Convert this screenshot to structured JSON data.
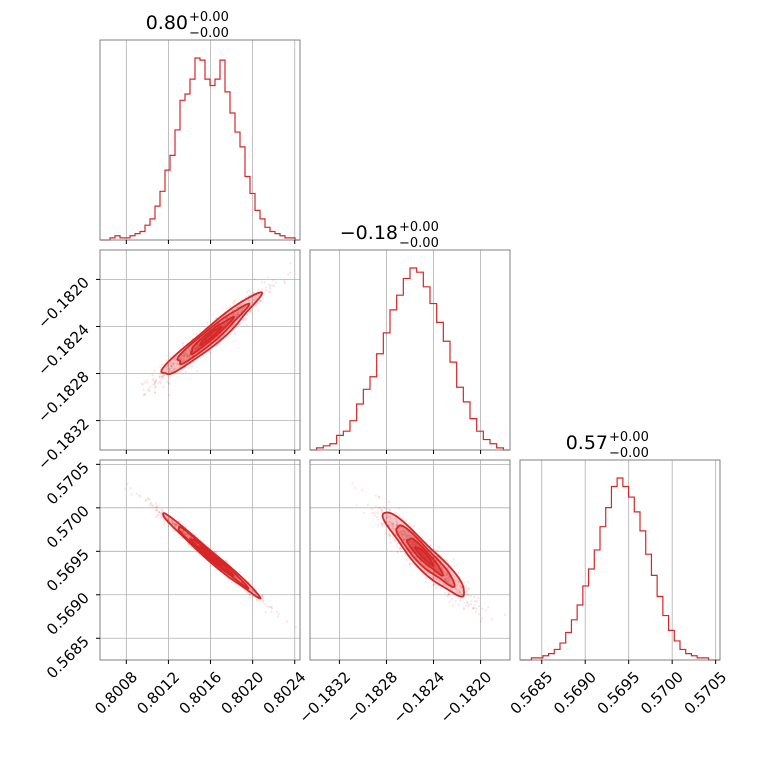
{
  "colors": {
    "series": "#d62728",
    "grid": "#b0b0b0",
    "frame": "#808080"
  },
  "titles": [
    {
      "value": "0.80",
      "plus": "+0.00",
      "minus": "−0.00"
    },
    {
      "value": "−0.18",
      "plus": "+0.00",
      "minus": "−0.00"
    },
    {
      "value": "0.57",
      "plus": "+0.00",
      "minus": "−0.00"
    }
  ],
  "chart_data": {
    "type": "corner",
    "parameters": [
      {
        "range": [
          0.80055,
          0.80245
        ],
        "ticks": [
          0.8008,
          0.8012,
          0.8016,
          0.802,
          0.8024
        ],
        "tick_labels": [
          "0.8008",
          "0.8012",
          "0.8016",
          "0.8020",
          "0.8024"
        ],
        "histogram": [
          0,
          0,
          1,
          2,
          1,
          1,
          2,
          3,
          4,
          7,
          10,
          16,
          23,
          33,
          40,
          52,
          66,
          69,
          76,
          86,
          85,
          76,
          73,
          76,
          85,
          70,
          60,
          51,
          44,
          30,
          22,
          14,
          10,
          6,
          4,
          3,
          2,
          1,
          1,
          0
        ]
      },
      {
        "range": [
          -0.18345,
          -0.18175
        ],
        "ticks": [
          -0.1832,
          -0.1828,
          -0.1824,
          -0.182
        ],
        "tick_labels": [
          "−0.1832",
          "−0.1828",
          "−0.1824",
          "−0.1820"
        ],
        "histogram": [
          0,
          1,
          2,
          3,
          7,
          9,
          14,
          22,
          29,
          35,
          46,
          56,
          67,
          74,
          82,
          87,
          85,
          78,
          70,
          61,
          52,
          42,
          30,
          23,
          15,
          9,
          5,
          3,
          1,
          0
        ]
      },
      {
        "range": [
          0.56825,
          0.57055
        ],
        "ticks": [
          0.5685,
          0.569,
          0.5695,
          0.57,
          0.5705
        ],
        "tick_labels": [
          "0.5685",
          "0.5690",
          "0.5695",
          "0.5700",
          "0.5705"
        ],
        "histogram": [
          0,
          0,
          1,
          1,
          2,
          3,
          5,
          8,
          13,
          19,
          26,
          35,
          43,
          52,
          63,
          72,
          82,
          86,
          82,
          77,
          70,
          61,
          50,
          40,
          30,
          21,
          14,
          9,
          5,
          3,
          2,
          1,
          1,
          0,
          0
        ]
      }
    ],
    "pairs": [
      {
        "x_param": 0,
        "y_param": 1,
        "correlation": 0.96
      },
      {
        "x_param": 0,
        "y_param": 2,
        "correlation": -0.99
      },
      {
        "x_param": 1,
        "y_param": 2,
        "correlation": -0.93
      }
    ],
    "grid": true
  }
}
